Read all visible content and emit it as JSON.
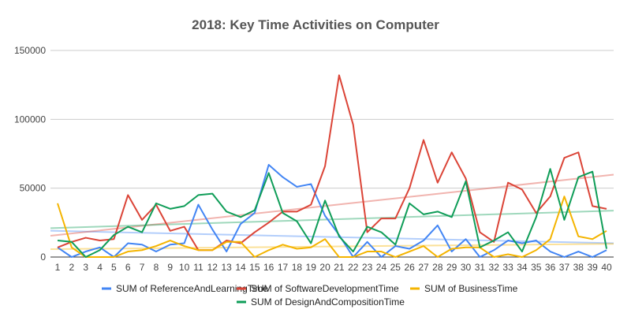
{
  "chart_data": {
    "type": "line",
    "title": "2018: Key Time Activities on Computer",
    "xlabel": "",
    "ylabel": "",
    "x": [
      1,
      2,
      3,
      4,
      5,
      6,
      7,
      8,
      9,
      10,
      11,
      12,
      13,
      14,
      15,
      16,
      17,
      18,
      19,
      20,
      21,
      22,
      23,
      24,
      25,
      26,
      27,
      28,
      29,
      30,
      31,
      32,
      33,
      34,
      35,
      36,
      37,
      38,
      39,
      40
    ],
    "ylim": [
      0,
      150000
    ],
    "yticks": [
      0,
      50000,
      100000,
      150000
    ],
    "grid": true,
    "trendlines": true,
    "legend_position": "bottom",
    "series": [
      {
        "name": "SUM of ReferenceAndLearningTime",
        "color": "#4285f4",
        "values": [
          7000,
          0,
          4000,
          7000,
          0,
          10000,
          9000,
          4000,
          9000,
          10000,
          38000,
          20000,
          4000,
          24000,
          32000,
          67000,
          58000,
          51000,
          53000,
          30000,
          16000,
          0,
          11000,
          0,
          8000,
          6000,
          12000,
          23000,
          4000,
          13000,
          0,
          5000,
          12000,
          10000,
          12000,
          4000,
          0,
          4000,
          0,
          5000
        ]
      },
      {
        "name": "SUM of SoftwareDevelopmentTime",
        "color": "#db4437",
        "values": [
          7000,
          11000,
          14000,
          12000,
          13000,
          45000,
          27000,
          38000,
          19000,
          22000,
          5000,
          5000,
          12000,
          10000,
          18000,
          25000,
          33000,
          33000,
          38000,
          66000,
          132000,
          96000,
          18000,
          28000,
          28000,
          50000,
          85000,
          54000,
          76000,
          57000,
          18000,
          11000,
          54000,
          49000,
          32000,
          44000,
          72000,
          76000,
          37000,
          35000
        ]
      },
      {
        "name": "SUM of BusinessTime",
        "color": "#f4b400",
        "values": [
          39000,
          7000,
          0,
          0,
          0,
          4000,
          5000,
          8000,
          12000,
          8000,
          5000,
          5000,
          11000,
          11000,
          0,
          5000,
          9000,
          6000,
          7000,
          13000,
          0,
          0,
          4000,
          4000,
          0,
          4000,
          8000,
          0,
          6000,
          7000,
          7000,
          0,
          2000,
          0,
          5000,
          13000,
          44000,
          15000,
          13000,
          19000
        ]
      },
      {
        "name": "SUM of DesignAndCompositionTime",
        "color": "#0f9d58",
        "values": [
          12000,
          11000,
          0,
          5000,
          16000,
          22000,
          18000,
          39000,
          35000,
          37000,
          45000,
          46000,
          33000,
          29000,
          34000,
          61000,
          32000,
          26000,
          10000,
          41000,
          15000,
          4000,
          22000,
          18000,
          9000,
          39000,
          31000,
          33000,
          29000,
          55000,
          7000,
          12000,
          18000,
          4000,
          29000,
          64000,
          27000,
          58000,
          62000,
          6000
        ]
      }
    ]
  }
}
